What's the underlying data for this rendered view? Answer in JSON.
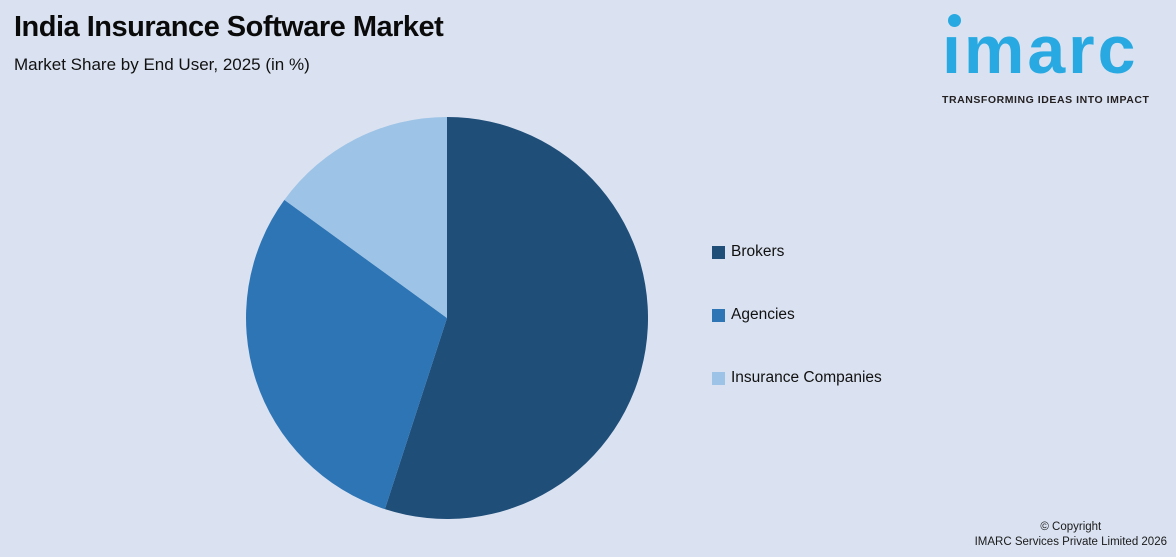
{
  "header": {
    "title": "India Insurance Software Market",
    "subtitle": "Market Share by End User, 2025 (in %)"
  },
  "logo": {
    "brand": "imarc",
    "tagline": "TRANSFORMING IDEAS INTO IMPACT",
    "brand_color": "#29A9E1",
    "tagline_color": "#231F20"
  },
  "chart_data": {
    "type": "pie",
    "title": "India Insurance Software Market",
    "subtitle": "Market Share by End User, 2025 (in %)",
    "unit": "%",
    "start_angle_deg": 0,
    "direction": "clockwise",
    "legend_position": "right",
    "data_labels_shown": false,
    "slices": [
      {
        "label": "Brokers",
        "value": 55,
        "color": "#1F4E79"
      },
      {
        "label": "Agencies",
        "value": 30,
        "color": "#2E75B6"
      },
      {
        "label": "Insurance Companies",
        "value": 15,
        "color": "#9DC3E6"
      }
    ],
    "background_color": "#DAE2F1"
  },
  "footer": {
    "copyright_line1": "© Copyright",
    "copyright_line2": "IMARC Services Private Limited 2026"
  }
}
